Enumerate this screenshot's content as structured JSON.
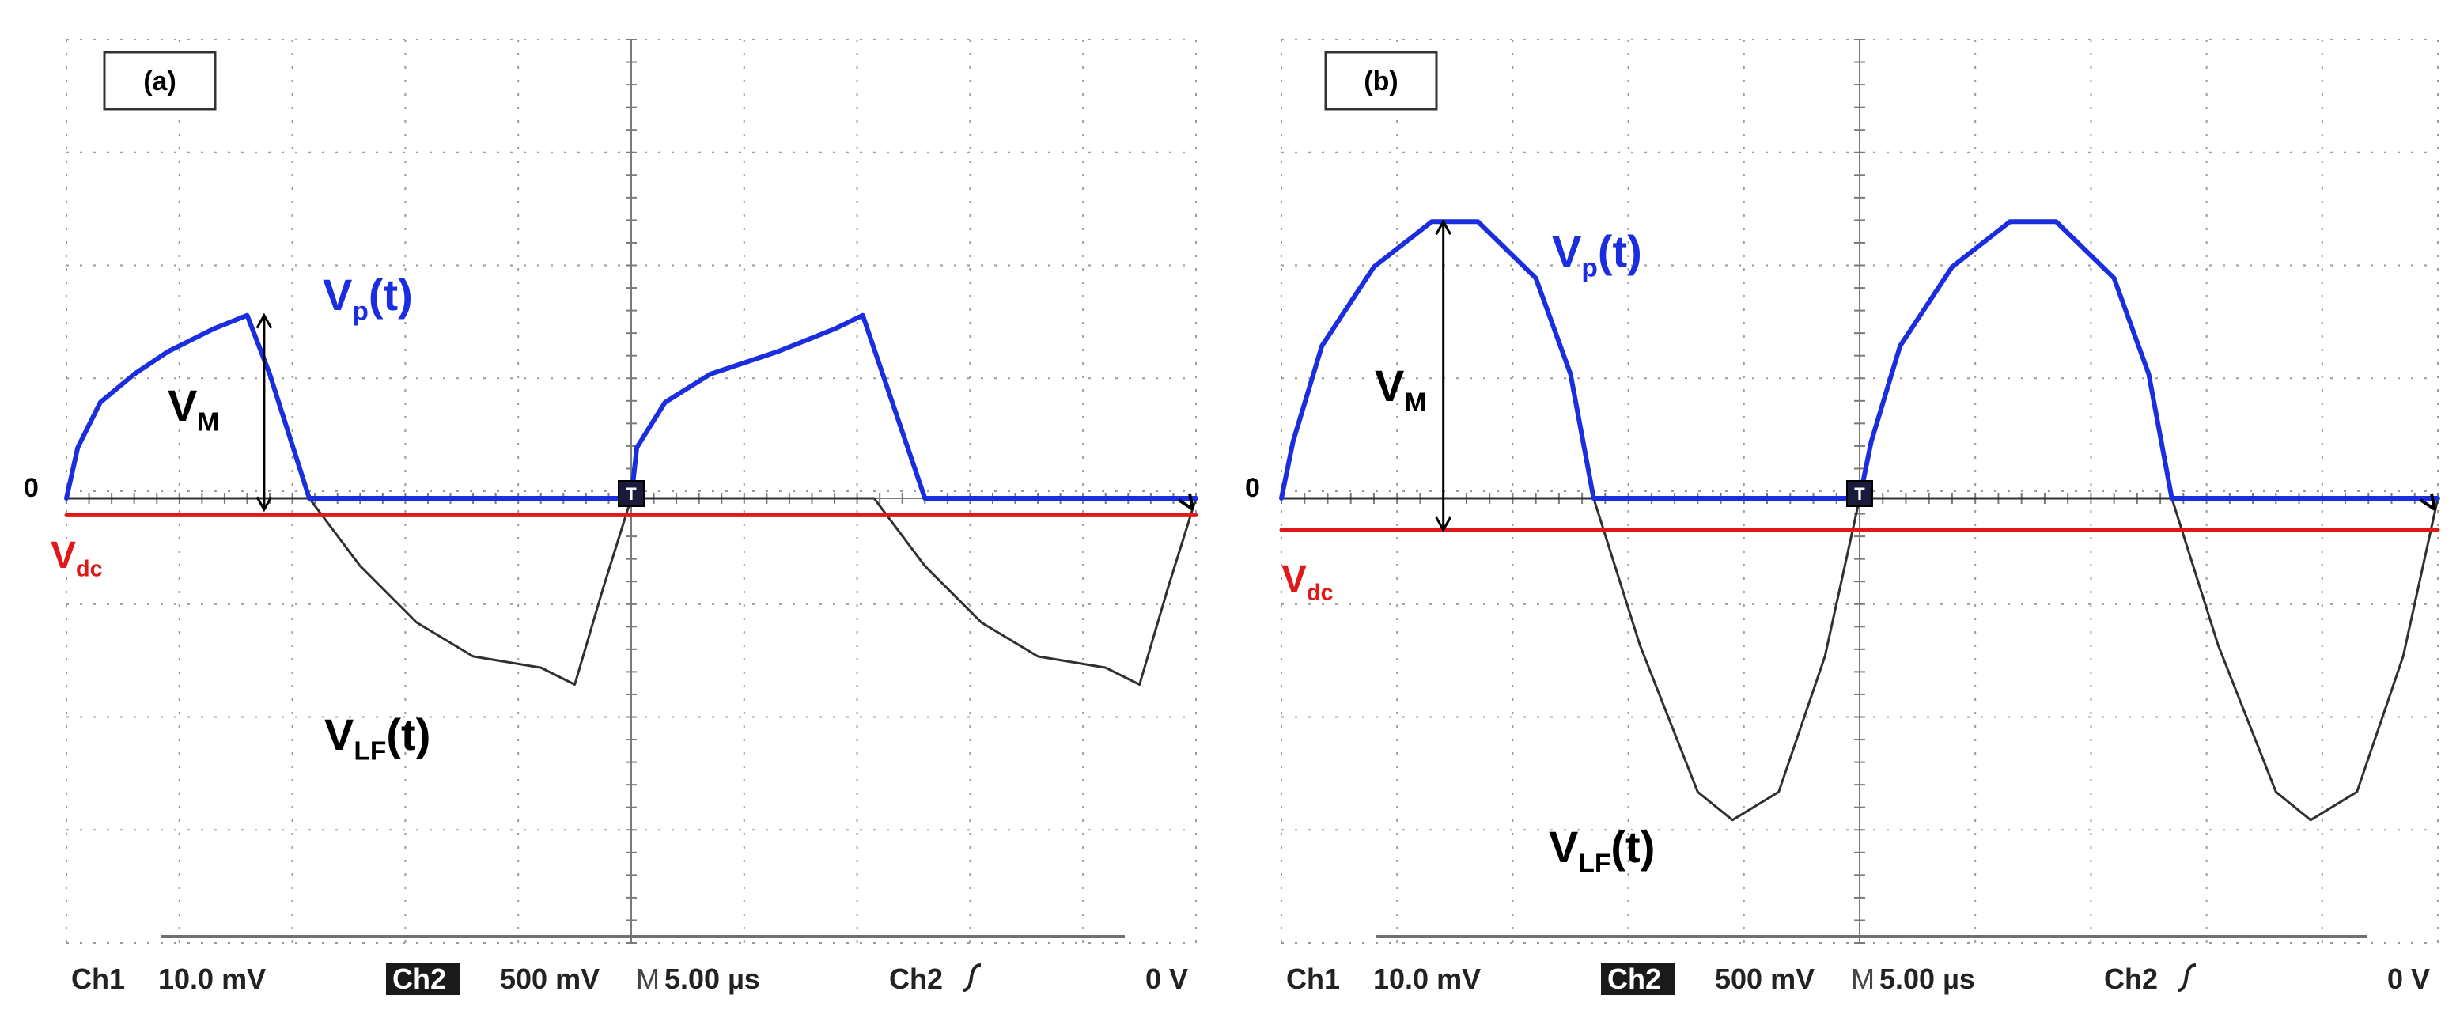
{
  "chart_data": [
    {
      "type": "line",
      "panel_label": "(a)",
      "zero_label": "0",
      "ylim_div": [
        -4,
        4
      ],
      "xlim_div": [
        0,
        10
      ],
      "series": [
        {
          "name": "Vp(t)",
          "label_main": "V",
          "label_sub": "p",
          "label_suffix": "(t)",
          "color": "#1a2ee0",
          "x": [
            0,
            0.1,
            0.3,
            0.6,
            0.9,
            1.3,
            1.6,
            1.8,
            2.15,
            2.6,
            3.0,
            4.0,
            4.95,
            5.0,
            5.05,
            5.3,
            5.7,
            6.3,
            6.8,
            7.05,
            7.6,
            8.0,
            9.0,
            10.0
          ],
          "y": [
            0,
            0.45,
            0.85,
            1.1,
            1.3,
            1.5,
            1.62,
            1.1,
            0,
            0,
            0,
            0,
            0,
            0,
            0.45,
            0.85,
            1.1,
            1.3,
            1.5,
            1.62,
            0,
            0,
            0,
            0
          ]
        },
        {
          "name": "VLF(t)",
          "label_main": "V",
          "label_sub": "LF",
          "label_suffix": "(t)",
          "color": "#303030",
          "x": [
            0,
            1.0,
            2.15,
            2.6,
            3.1,
            3.6,
            4.2,
            4.5,
            4.75,
            5.0,
            6.0,
            7.15,
            7.6,
            8.1,
            8.6,
            9.2,
            9.5,
            9.75,
            10.0
          ],
          "y": [
            0,
            0,
            0,
            -0.6,
            -1.1,
            -1.4,
            -1.5,
            -1.65,
            -0.8,
            0,
            0,
            0,
            -0.6,
            -1.1,
            -1.4,
            -1.5,
            -1.65,
            -0.8,
            0
          ]
        },
        {
          "name": "Vdc",
          "label_main": "V",
          "label_sub": "dc",
          "label_suffix": "",
          "color": "#e01818",
          "x": [
            0,
            10
          ],
          "y": [
            -0.15,
            -0.15
          ]
        }
      ],
      "annotations": [
        {
          "name": "VM",
          "label_main": "V",
          "label_sub": "M",
          "x": 1.75,
          "y_from": -0.1,
          "y_to": 1.62
        }
      ],
      "status_bar": {
        "ch1": "Ch1",
        "ch1_scale": "10.0 mV",
        "ch2": "Ch2",
        "ch2_scale": "500 mV",
        "m": "M",
        "timebase": "5.00 µs",
        "trig_ch": "Ch2",
        "trig_level": "0 V"
      }
    },
    {
      "type": "line",
      "panel_label": "(b)",
      "zero_label": "0",
      "ylim_div": [
        -4,
        4
      ],
      "xlim_div": [
        0,
        10
      ],
      "series": [
        {
          "name": "Vp(t)",
          "label_main": "V",
          "label_sub": "p",
          "label_suffix": "(t)",
          "color": "#1a2ee0",
          "x": [
            0,
            0.1,
            0.35,
            0.8,
            1.3,
            1.7,
            2.2,
            2.5,
            2.7,
            3.0,
            4.0,
            5.0,
            5.1,
            5.35,
            5.8,
            6.3,
            6.7,
            7.2,
            7.5,
            7.7,
            8.0,
            9.0,
            10.0
          ],
          "y": [
            0,
            0.5,
            1.35,
            2.05,
            2.45,
            2.45,
            1.95,
            1.1,
            0,
            0,
            0,
            0,
            0.5,
            1.35,
            2.05,
            2.45,
            2.45,
            1.95,
            1.1,
            0,
            0,
            0,
            0
          ]
        },
        {
          "name": "VLF(t)",
          "label_main": "V",
          "label_sub": "LF",
          "label_suffix": "(t)",
          "color": "#303030",
          "x": [
            0,
            1.5,
            2.7,
            3.1,
            3.6,
            3.9,
            4.3,
            4.7,
            5.0,
            6.5,
            7.7,
            8.1,
            8.6,
            8.9,
            9.3,
            9.7,
            10.0
          ],
          "y": [
            0,
            0,
            0,
            -1.3,
            -2.6,
            -2.85,
            -2.6,
            -1.4,
            0,
            0,
            0,
            -1.3,
            -2.6,
            -2.85,
            -2.6,
            -1.4,
            0
          ]
        },
        {
          "name": "Vdc",
          "label_main": "V",
          "label_sub": "dc",
          "label_suffix": "",
          "color": "#e01818",
          "x": [
            0,
            10
          ],
          "y": [
            -0.28,
            -0.28
          ]
        }
      ],
      "annotations": [
        {
          "name": "VM",
          "label_main": "V",
          "label_sub": "M",
          "x": 1.4,
          "y_from": -0.28,
          "y_to": 2.45
        }
      ],
      "status_bar": {
        "ch1": "Ch1",
        "ch1_scale": "10.0 mV",
        "ch2": "Ch2",
        "ch2_scale": "500 mV",
        "m": "M",
        "timebase": "5.00 µs",
        "trig_ch": "Ch2",
        "trig_level": "0 V"
      }
    }
  ]
}
